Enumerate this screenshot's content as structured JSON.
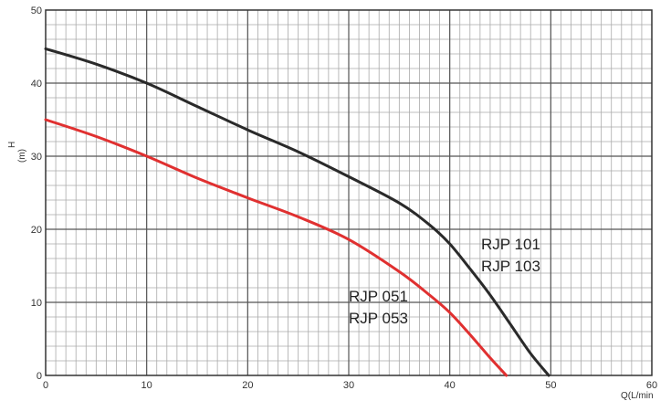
{
  "chart_data": {
    "type": "line",
    "title": "",
    "xlabel": "Q(L/min",
    "ylabel_line1": "H",
    "ylabel_line2": "(m)",
    "xlim": [
      0,
      60
    ],
    "ylim": [
      0,
      50
    ],
    "x_ticks": [
      0,
      10,
      20,
      30,
      40,
      50,
      60
    ],
    "y_ticks": [
      0,
      10,
      20,
      30,
      40,
      50
    ],
    "grid": true,
    "minor_grid_step_x": 1,
    "minor_grid_step_y": 2,
    "series": [
      {
        "label_lines": [
          "RJP 101",
          "RJP 103"
        ],
        "color": "#2a2a2a",
        "x": [
          0,
          5,
          10,
          15,
          20,
          25,
          30,
          35,
          38,
          40,
          42,
          44,
          46,
          48,
          49.8
        ],
        "y": [
          44.7,
          42.6,
          40.0,
          36.8,
          33.6,
          30.6,
          27.2,
          23.6,
          20.6,
          18.0,
          14.6,
          11.0,
          7.0,
          3.0,
          0
        ]
      },
      {
        "label_lines": [
          "RJP 051",
          "RJP 053"
        ],
        "color": "#e03030",
        "x": [
          0,
          5,
          10,
          15,
          20,
          25,
          30,
          35,
          38,
          40,
          42,
          44,
          45.6
        ],
        "y": [
          35.0,
          32.7,
          30.0,
          27.0,
          24.3,
          21.7,
          18.6,
          14.2,
          11.0,
          8.6,
          5.6,
          2.4,
          0
        ]
      }
    ]
  }
}
